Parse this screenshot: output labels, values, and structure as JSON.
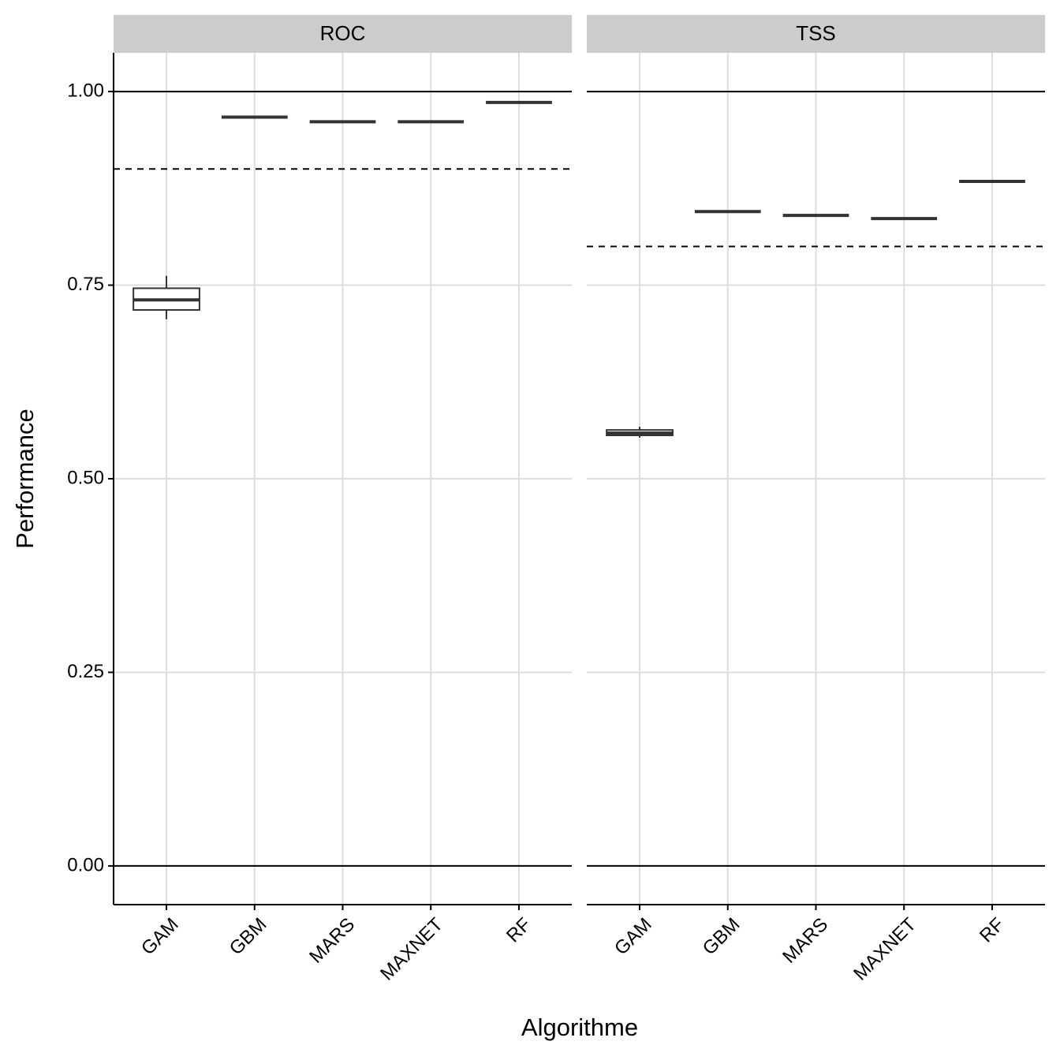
{
  "chart_data": {
    "type": "box",
    "x_label": "Algorithme",
    "y_label": "Performance",
    "ylim": [
      -0.05,
      1.05
    ],
    "yticks": [
      {
        "value": 0,
        "label": "0.00"
      },
      {
        "value": 0.25,
        "label": "0.25"
      },
      {
        "value": 0.5,
        "label": "0.50"
      },
      {
        "value": 0.75,
        "label": "0.75"
      },
      {
        "value": 1,
        "label": "1.00"
      }
    ],
    "grid": true,
    "color": "#333333",
    "categories": [
      "GAM",
      "GBM",
      "MARS",
      "MAXNET",
      "RF"
    ],
    "facets": [
      {
        "title": "ROC",
        "reference_lines": [
          {
            "value": 0,
            "style": "solid"
          },
          {
            "value": 1,
            "style": "solid"
          },
          {
            "value": 0.9,
            "style": "dashed"
          }
        ],
        "boxes": [
          {
            "min": 0.706,
            "q1": 0.718,
            "median": 0.731,
            "q3": 0.746,
            "max": 0.762
          },
          {
            "min": 0.967,
            "q1": 0.967,
            "median": 0.967,
            "q3": 0.967,
            "max": 0.967
          },
          {
            "min": 0.961,
            "q1": 0.961,
            "median": 0.961,
            "q3": 0.961,
            "max": 0.961
          },
          {
            "min": 0.961,
            "q1": 0.961,
            "median": 0.961,
            "q3": 0.961,
            "max": 0.961
          },
          {
            "min": 0.986,
            "q1": 0.986,
            "median": 0.986,
            "q3": 0.986,
            "max": 0.986
          }
        ]
      },
      {
        "title": "TSS",
        "reference_lines": [
          {
            "value": 0,
            "style": "solid"
          },
          {
            "value": 1,
            "style": "solid"
          },
          {
            "value": 0.8,
            "style": "dashed"
          }
        ],
        "boxes": [
          {
            "min": 0.553,
            "q1": 0.556,
            "median": 0.559,
            "q3": 0.563,
            "max": 0.567
          },
          {
            "min": 0.845,
            "q1": 0.845,
            "median": 0.845,
            "q3": 0.845,
            "max": 0.845
          },
          {
            "min": 0.84,
            "q1": 0.84,
            "median": 0.84,
            "q3": 0.84,
            "max": 0.84
          },
          {
            "min": 0.836,
            "q1": 0.836,
            "median": 0.836,
            "q3": 0.836,
            "max": 0.836
          },
          {
            "min": 0.884,
            "q1": 0.884,
            "median": 0.884,
            "q3": 0.884,
            "max": 0.884
          }
        ]
      }
    ]
  }
}
